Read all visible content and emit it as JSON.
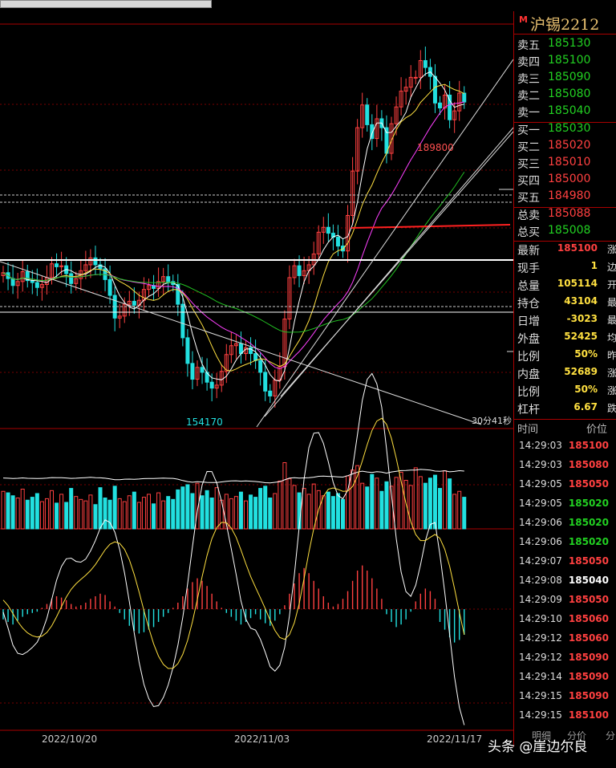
{
  "colors": {
    "up": "#ff4040",
    "down": "#22e0e0",
    "ma5": "#ffffff",
    "ma10": "#ffe040",
    "ma20": "#ff40ff",
    "ma60": "#22c022",
    "accent": "#ff3030"
  },
  "panel": {
    "market_icon": "M",
    "symbol": "沪锡2212",
    "asks": [
      {
        "label": "卖五",
        "price": "185130"
      },
      {
        "label": "卖四",
        "price": "185100"
      },
      {
        "label": "卖三",
        "price": "185090"
      },
      {
        "label": "卖二",
        "price": "185080"
      },
      {
        "label": "卖一",
        "price": "185040"
      }
    ],
    "bids": [
      {
        "label": "买一",
        "price": "185030"
      },
      {
        "label": "买二",
        "price": "185020"
      },
      {
        "label": "买三",
        "price": "185010"
      },
      {
        "label": "买四",
        "price": "185000"
      },
      {
        "label": "买五",
        "price": "184980"
      }
    ],
    "totals": [
      {
        "label": "总卖",
        "value": "185088"
      },
      {
        "label": "总买",
        "value": "185008"
      }
    ],
    "stats": [
      {
        "label": "最新",
        "value": "185100",
        "tail": "涨"
      },
      {
        "label": "现手",
        "value": "1",
        "tail": "边"
      },
      {
        "label": "总量",
        "value": "105114",
        "tail": "开"
      },
      {
        "label": "持仓",
        "value": "43104",
        "tail": "最"
      },
      {
        "label": "日增",
        "value": "-3023",
        "tail": "最"
      },
      {
        "label": "外盘",
        "value": "52425",
        "tail": "均"
      },
      {
        "label": "比例",
        "value": "50%",
        "tail": "昨"
      },
      {
        "label": "内盘",
        "value": "52689",
        "tail": "涨"
      },
      {
        "label": "比例",
        "value": "50%",
        "tail": "涨"
      },
      {
        "label": "杠杆",
        "value": "6.67",
        "tail": "跌"
      }
    ],
    "ticks_header": {
      "time": "时间",
      "price": "价位"
    },
    "ticks": [
      {
        "time": "14:29:03",
        "price": "185100",
        "dir": "up"
      },
      {
        "time": "14:29:03",
        "price": "185080",
        "dir": "up"
      },
      {
        "time": "14:29:05",
        "price": "185050",
        "dir": "up"
      },
      {
        "time": "14:29:05",
        "price": "185020",
        "dir": "down"
      },
      {
        "time": "14:29:06",
        "price": "185020",
        "dir": "down"
      },
      {
        "time": "14:29:06",
        "price": "185020",
        "dir": "down"
      },
      {
        "time": "14:29:07",
        "price": "185050",
        "dir": "up"
      },
      {
        "time": "14:29:08",
        "price": "185040",
        "dir": "flat"
      },
      {
        "time": "14:29:09",
        "price": "185050",
        "dir": "up"
      },
      {
        "time": "14:29:10",
        "price": "185060",
        "dir": "up"
      },
      {
        "time": "14:29:12",
        "price": "185060",
        "dir": "up"
      },
      {
        "time": "14:29:12",
        "price": "185090",
        "dir": "up"
      },
      {
        "time": "14:29:14",
        "price": "185090",
        "dir": "up"
      },
      {
        "time": "14:29:15",
        "price": "185090",
        "dir": "up"
      },
      {
        "time": "14:29:15",
        "price": "185100",
        "dir": "up"
      }
    ],
    "bottom_tabs": [
      "明细",
      "分价",
      "分"
    ]
  },
  "chart_data": {
    "type": "candlestick",
    "high_label": "189800",
    "low_label": "154170",
    "countdown": "30分41秒",
    "x_labels": [
      "2022/10/20",
      "2022/11/03",
      "2022/11/17"
    ],
    "price_range": [
      152000,
      193000
    ],
    "close": [
      167800,
      167200,
      166500,
      166900,
      167900,
      167000,
      166800,
      166300,
      166600,
      167300,
      168700,
      168400,
      168500,
      167700,
      166700,
      167200,
      168000,
      168600,
      169300,
      168600,
      168200,
      167100,
      165500,
      163200,
      163400,
      164600,
      164900,
      164500,
      165000,
      166100,
      166500,
      166200,
      166900,
      167400,
      166900,
      166600,
      164600,
      161200,
      158600,
      157000,
      158200,
      157700,
      156700,
      156100,
      156400,
      157800,
      159500,
      160400,
      160600,
      159600,
      160200,
      159600,
      158900,
      157700,
      155800,
      155300,
      156900,
      158300,
      163100,
      167300,
      168500,
      167500,
      168000,
      168600,
      169700,
      171900,
      172400,
      171800,
      171400,
      170500,
      170000,
      173600,
      178100,
      182500,
      184800,
      182800,
      181400,
      183400,
      182500,
      179900,
      182900,
      184600,
      186200,
      186600,
      187600,
      187600,
      189300,
      188600,
      187700,
      185000,
      184500,
      185800,
      183300,
      184200,
      186000,
      185100
    ],
    "volume_range": [
      0,
      120000
    ],
    "volume": [
      51000,
      49000,
      45000,
      42000,
      54000,
      39000,
      43000,
      48000,
      37000,
      41000,
      52000,
      35000,
      47000,
      36000,
      55000,
      44000,
      40000,
      38000,
      46000,
      33000,
      56000,
      42000,
      39000,
      58000,
      41000,
      37000,
      45000,
      50000,
      36000,
      43000,
      47000,
      34000,
      49000,
      38000,
      44000,
      40000,
      53000,
      57000,
      60000,
      48000,
      62000,
      45000,
      52000,
      42000,
      56000,
      39000,
      47000,
      41000,
      44000,
      50000,
      38000,
      46000,
      43000,
      55000,
      58000,
      42000,
      48000,
      65000,
      90000,
      68000,
      59000,
      49000,
      55000,
      47000,
      61000,
      52000,
      45000,
      50000,
      44000,
      48000,
      40000,
      72000,
      80000,
      86000,
      62000,
      57000,
      74000,
      69000,
      51000,
      64000,
      58000,
      70000,
      77000,
      66000,
      59000,
      83000,
      71000,
      62000,
      69000,
      73000,
      55000,
      79000,
      68000,
      47000,
      51000,
      43000
    ],
    "macd": [
      -8,
      -10,
      -12,
      -9,
      -6,
      -4,
      -3,
      -2,
      1,
      4,
      8,
      10,
      9,
      7,
      4,
      2,
      3,
      5,
      8,
      10,
      12,
      11,
      6,
      2,
      -3,
      -8,
      -13,
      -17,
      -19,
      -18,
      -16,
      -14,
      -10,
      -6,
      -3,
      1,
      5,
      10,
      16,
      21,
      24,
      22,
      18,
      12,
      6,
      1,
      -3,
      -6,
      -9,
      -12,
      -10,
      -7,
      -4,
      -8,
      -11,
      -13,
      -9,
      -4,
      3,
      12,
      20,
      28,
      32,
      28,
      22,
      16,
      10,
      5,
      2,
      4,
      8,
      14,
      22,
      30,
      34,
      30,
      24,
      16,
      8,
      -4,
      -10,
      -14,
      -12,
      -8,
      -2,
      6,
      12,
      16,
      14,
      8,
      -10,
      -16,
      -22,
      -26,
      -24,
      -20
    ]
  }
}
